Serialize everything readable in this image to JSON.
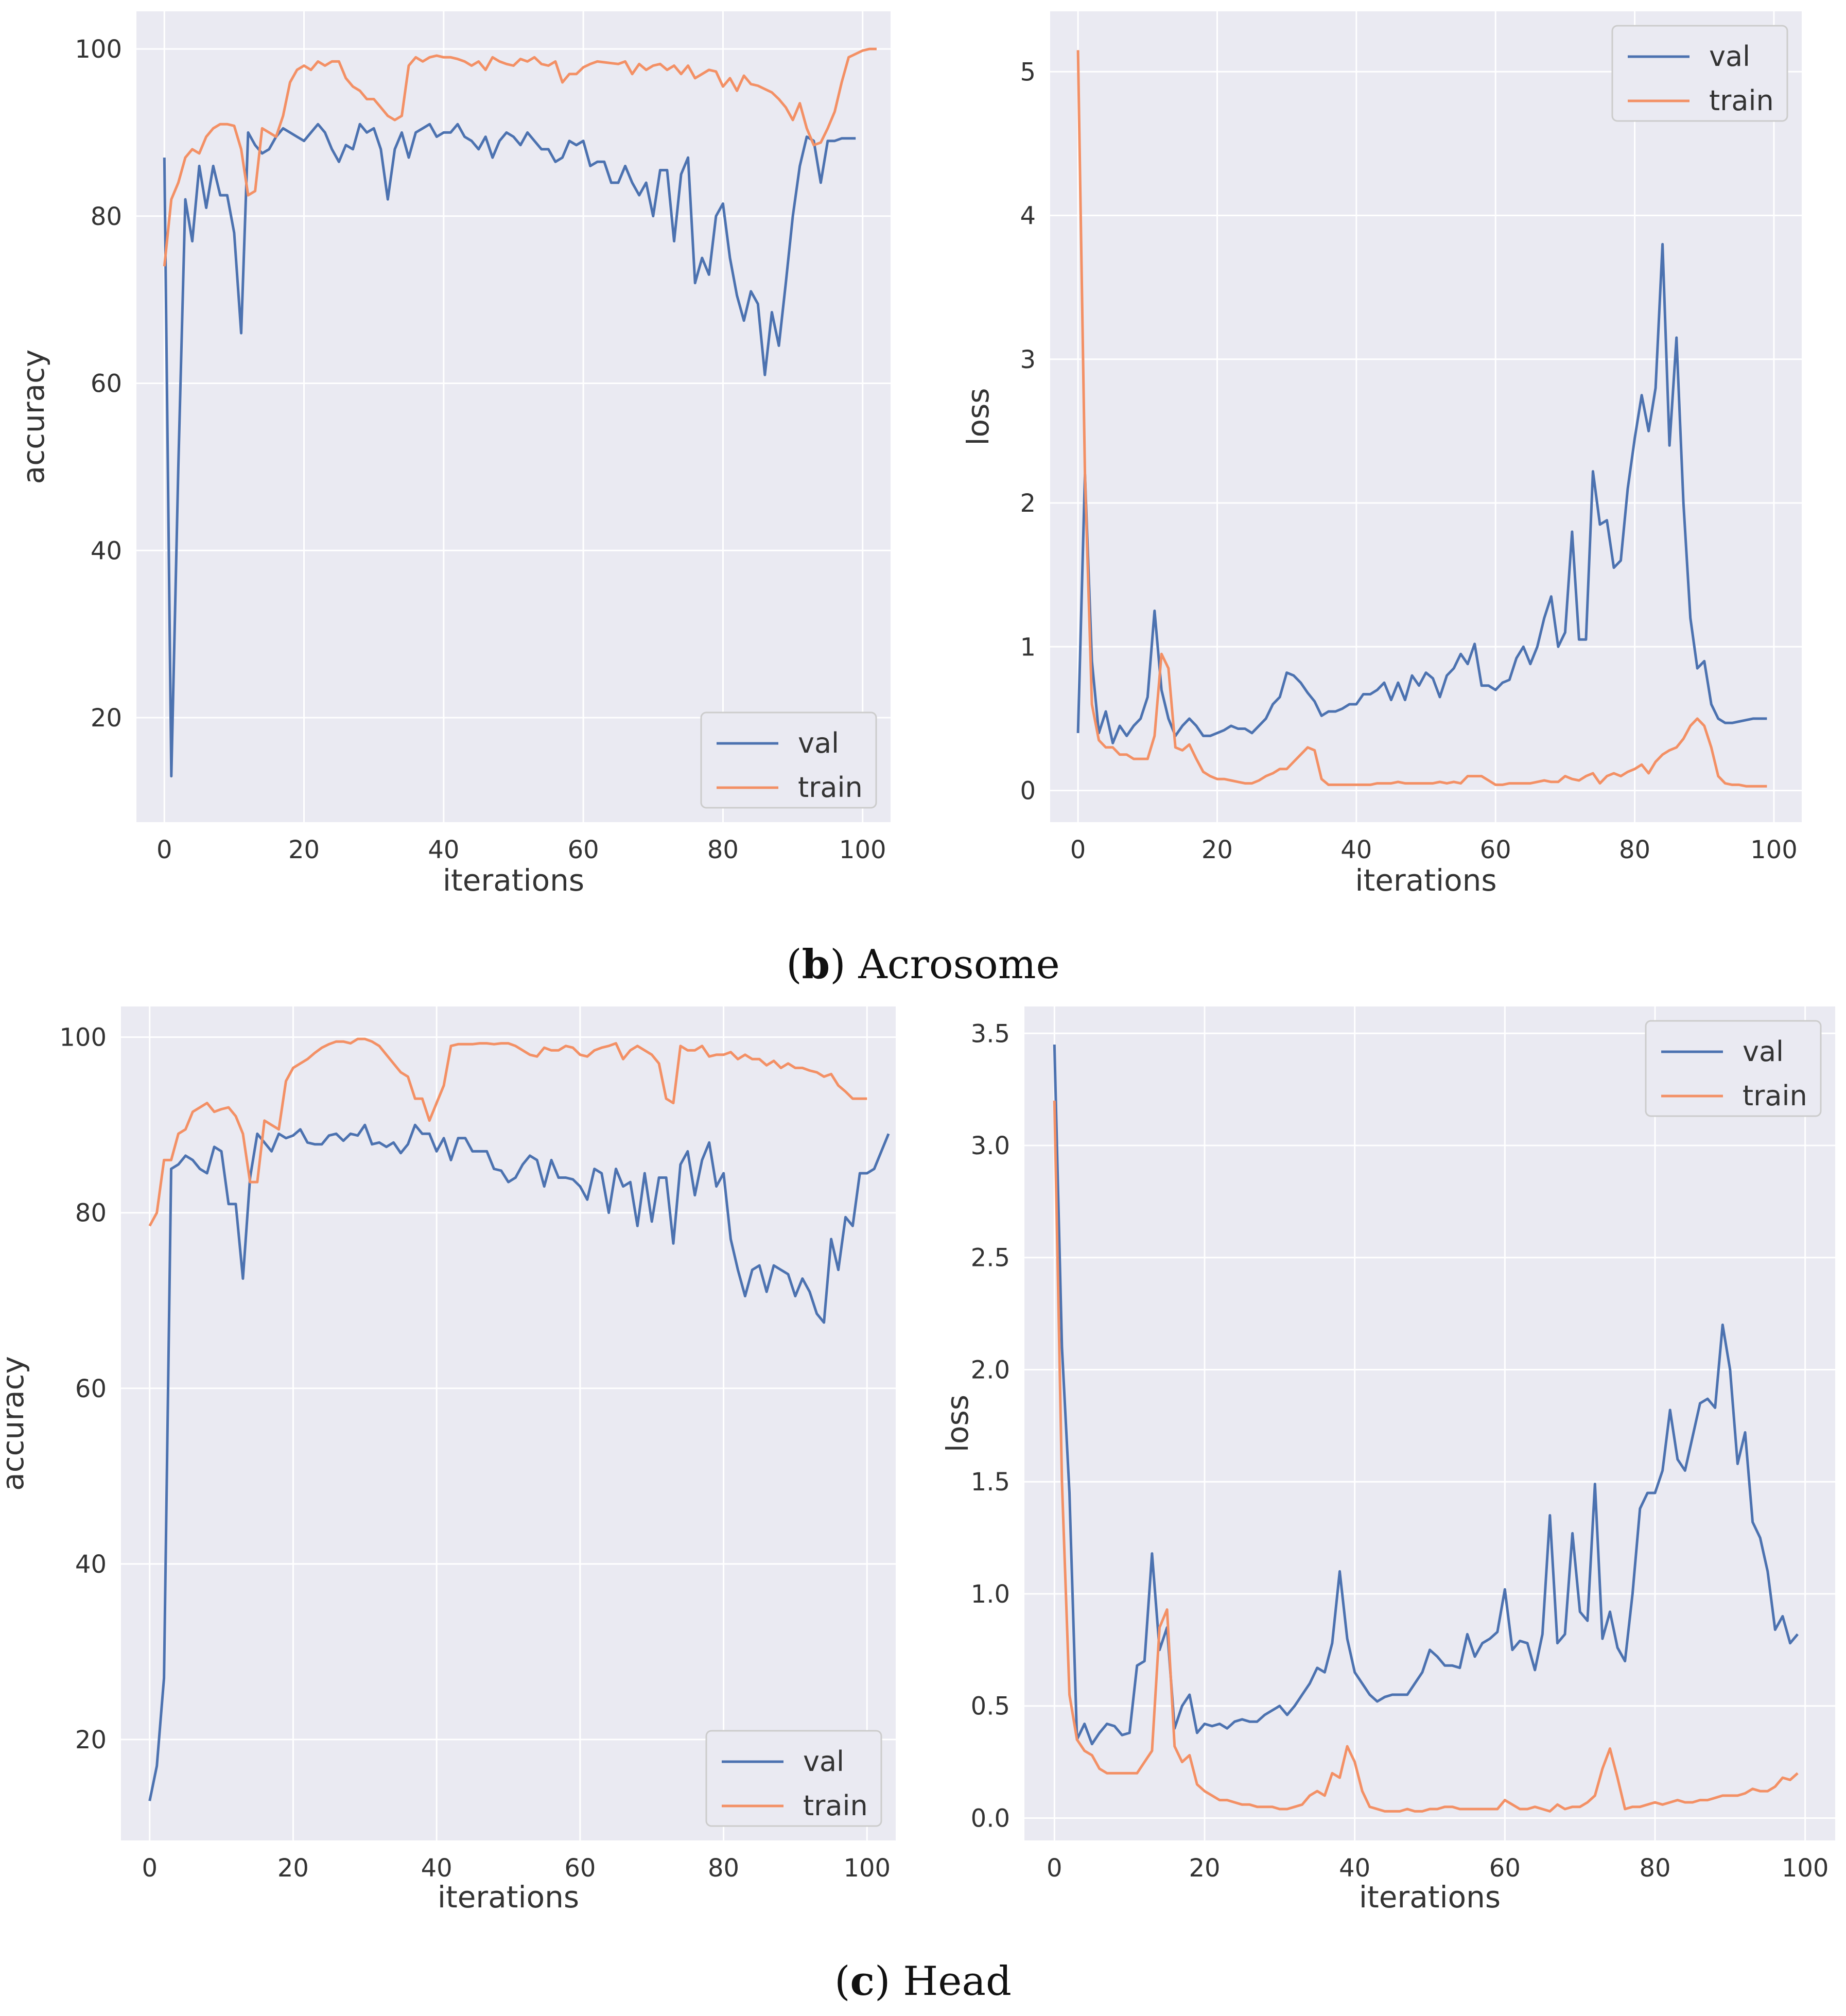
{
  "colors": {
    "val": "#4c72b0",
    "train": "#f39065",
    "background": "#eaeaf2",
    "grid": "#ffffff"
  },
  "captions": [
    {
      "letter": "b",
      "text": "Acrosome"
    },
    {
      "letter": "c",
      "text": "Head"
    }
  ],
  "chart_data": [
    {
      "id": "acrosome-accuracy",
      "type": "line",
      "xlabel": "iterations",
      "ylabel": "accuracy",
      "xlim": [
        -4,
        104
      ],
      "ylim": [
        7.5,
        104.5
      ],
      "xticks": [
        0,
        20,
        40,
        60,
        80,
        100
      ],
      "yticks": [
        20,
        40,
        60,
        80,
        100
      ],
      "legend": "bottom-right",
      "series": [
        {
          "name": "val",
          "values": [
            87,
            13,
            50,
            82,
            77,
            86,
            81,
            86,
            82.5,
            82.5,
            78,
            66,
            90,
            88.5,
            87.5,
            88,
            89.5,
            90.5,
            90,
            89.5,
            89,
            90,
            91,
            90,
            88,
            86.5,
            88.5,
            88,
            91,
            90,
            90.5,
            88,
            82,
            88,
            90,
            87,
            90,
            90.5,
            91,
            89.5,
            90,
            90,
            91,
            89.5,
            89,
            88,
            89.5,
            87,
            89,
            90,
            89.5,
            88.5,
            90,
            89,
            88,
            88,
            86.5,
            87,
            89,
            88.5,
            89,
            86,
            86.5,
            86.5,
            84,
            84,
            86,
            84,
            82.5,
            84,
            80,
            85.5,
            85.5,
            77,
            85,
            87,
            72,
            75,
            73,
            80,
            81.5,
            75,
            70.5,
            67.5,
            71,
            69.5,
            61,
            68.5,
            64.5,
            72,
            80,
            86,
            89.5,
            89,
            84,
            89,
            89,
            89.3,
            89.3,
            89.3
          ]
        },
        {
          "name": "train",
          "values": [
            74,
            82,
            84,
            87,
            88,
            87.5,
            89.5,
            90.5,
            91,
            91,
            90.8,
            88,
            82.5,
            83,
            90.5,
            90,
            89.5,
            92,
            96,
            97.5,
            98,
            97.5,
            98.5,
            98,
            98.5,
            98.5,
            96.5,
            95.5,
            95,
            94,
            94,
            93,
            92,
            91.5,
            92,
            98,
            99,
            98.5,
            99,
            99.2,
            99,
            99,
            98.8,
            98.5,
            98,
            98.5,
            97.5,
            99,
            98.5,
            98.2,
            98,
            98.8,
            98.5,
            99,
            98.2,
            98,
            98.5,
            96,
            97,
            97,
            97.8,
            98.2,
            98.5,
            98.4,
            98.3,
            98.2,
            98.5,
            97,
            98.2,
            97.5,
            98,
            98.2,
            97.5,
            98,
            97,
            98,
            96.5,
            97,
            97.5,
            97.3,
            95.5,
            96.5,
            95,
            96.8,
            95.8,
            95.6,
            95.2,
            94.8,
            94,
            93,
            91.5,
            93.5,
            90.5,
            88.5,
            88.8,
            90.5,
            92.5,
            96,
            99,
            99.4,
            99.8,
            100,
            100
          ]
        }
      ]
    },
    {
      "id": "acrosome-loss",
      "type": "line",
      "xlabel": "iterations",
      "ylabel": "loss",
      "xlim": [
        -4,
        104
      ],
      "ylim": [
        -0.22,
        5.42
      ],
      "xticks": [
        0,
        20,
        40,
        60,
        80,
        100
      ],
      "yticks": [
        0,
        1,
        2,
        3,
        4,
        5
      ],
      "legend": "top-right",
      "series": [
        {
          "name": "val",
          "values": [
            0.4,
            2.2,
            0.9,
            0.4,
            0.55,
            0.33,
            0.45,
            0.38,
            0.45,
            0.5,
            0.65,
            1.25,
            0.7,
            0.5,
            0.38,
            0.45,
            0.5,
            0.45,
            0.38,
            0.38,
            0.4,
            0.42,
            0.45,
            0.43,
            0.43,
            0.4,
            0.45,
            0.5,
            0.6,
            0.65,
            0.82,
            0.8,
            0.75,
            0.68,
            0.62,
            0.52,
            0.55,
            0.55,
            0.57,
            0.6,
            0.6,
            0.67,
            0.67,
            0.7,
            0.75,
            0.63,
            0.75,
            0.63,
            0.8,
            0.73,
            0.82,
            0.78,
            0.65,
            0.8,
            0.85,
            0.95,
            0.88,
            1.02,
            0.73,
            0.73,
            0.7,
            0.75,
            0.77,
            0.92,
            1.0,
            0.88,
            1.0,
            1.2,
            1.35,
            1.0,
            1.1,
            1.8,
            1.05,
            1.05,
            2.22,
            1.85,
            1.88,
            1.55,
            1.6,
            2.1,
            2.45,
            2.75,
            2.5,
            2.8,
            3.8,
            2.4,
            3.15,
            2.0,
            1.2,
            0.85,
            0.9,
            0.6,
            0.5,
            0.47,
            0.47,
            0.48,
            0.49,
            0.5,
            0.5,
            0.5
          ]
        },
        {
          "name": "train",
          "values": [
            5.15,
            2.2,
            0.6,
            0.35,
            0.3,
            0.3,
            0.25,
            0.25,
            0.22,
            0.22,
            0.22,
            0.38,
            0.95,
            0.85,
            0.3,
            0.28,
            0.32,
            0.22,
            0.13,
            0.1,
            0.08,
            0.08,
            0.07,
            0.06,
            0.05,
            0.05,
            0.07,
            0.1,
            0.12,
            0.15,
            0.15,
            0.2,
            0.25,
            0.3,
            0.28,
            0.08,
            0.04,
            0.04,
            0.04,
            0.04,
            0.04,
            0.04,
            0.04,
            0.05,
            0.05,
            0.05,
            0.06,
            0.05,
            0.05,
            0.05,
            0.05,
            0.05,
            0.06,
            0.05,
            0.06,
            0.05,
            0.1,
            0.1,
            0.1,
            0.07,
            0.04,
            0.04,
            0.05,
            0.05,
            0.05,
            0.05,
            0.06,
            0.07,
            0.06,
            0.06,
            0.1,
            0.08,
            0.07,
            0.1,
            0.12,
            0.05,
            0.1,
            0.12,
            0.1,
            0.13,
            0.15,
            0.18,
            0.12,
            0.2,
            0.25,
            0.28,
            0.3,
            0.36,
            0.45,
            0.5,
            0.45,
            0.3,
            0.1,
            0.05,
            0.04,
            0.04,
            0.03,
            0.03,
            0.03,
            0.03
          ]
        }
      ]
    },
    {
      "id": "head-accuracy",
      "type": "line",
      "xlabel": "iterations",
      "ylabel": "accuracy",
      "xlim": [
        -4,
        104
      ],
      "ylim": [
        8.5,
        103.5
      ],
      "xticks": [
        0,
        20,
        40,
        60,
        80,
        100
      ],
      "yticks": [
        20,
        40,
        60,
        80,
        100
      ],
      "legend": "bottom-right",
      "series": [
        {
          "name": "val",
          "values": [
            13,
            17,
            27,
            85,
            85.5,
            86.5,
            86,
            85,
            84.5,
            87.5,
            87,
            81,
            81,
            72.5,
            84,
            89,
            88,
            87,
            89,
            88.5,
            88.8,
            89.5,
            88,
            87.8,
            87.8,
            88.8,
            89,
            88.2,
            89,
            88.8,
            90,
            87.8,
            88,
            87.5,
            88,
            86.8,
            87.8,
            90,
            89,
            89,
            87,
            88.5,
            86,
            88.5,
            88.5,
            87,
            87,
            87,
            85,
            84.8,
            83.5,
            84,
            85.5,
            86.5,
            86,
            83,
            86,
            84,
            84,
            83.8,
            83,
            81.5,
            85,
            84.5,
            80,
            85,
            83,
            83.5,
            78.5,
            84.5,
            79,
            84,
            84,
            76.5,
            85.5,
            87,
            82,
            86,
            88,
            83,
            84.5,
            77,
            73.5,
            70.5,
            73.5,
            74,
            71,
            74,
            73.5,
            73,
            70.5,
            72.5,
            71,
            68.5,
            67.5,
            77,
            73.5,
            79.5,
            78.5,
            84.5,
            84.5,
            85,
            87,
            89
          ]
        },
        {
          "name": "train",
          "values": [
            78.5,
            80,
            86,
            86,
            89,
            89.5,
            91.5,
            92,
            92.5,
            91.5,
            91.8,
            92,
            91,
            89,
            83.5,
            83.5,
            90.5,
            90,
            89.5,
            95,
            96.5,
            97,
            97.5,
            98.2,
            98.8,
            99.2,
            99.5,
            99.5,
            99.3,
            99.8,
            99.8,
            99.5,
            99,
            98,
            97,
            96,
            95.5,
            93,
            93,
            90.5,
            92.5,
            94.5,
            99,
            99.2,
            99.2,
            99.2,
            99.3,
            99.3,
            99.2,
            99.3,
            99.3,
            99,
            98.5,
            98,
            97.8,
            98.8,
            98.5,
            98.5,
            99,
            98.8,
            98,
            97.8,
            98.5,
            98.8,
            99,
            99.3,
            97.5,
            98.5,
            99,
            98.5,
            98,
            97,
            93,
            92.5,
            99,
            98.5,
            98.5,
            99,
            97.8,
            98,
            98,
            98.3,
            97.5,
            98,
            97.5,
            97.5,
            96.8,
            97.3,
            96.5,
            97,
            96.5,
            96.5,
            96.2,
            96,
            95.5,
            95.8,
            94.5,
            93.8,
            93,
            93,
            93
          ]
        }
      ]
    },
    {
      "id": "head-loss",
      "type": "line",
      "xlabel": "iterations",
      "ylabel": "loss",
      "xlim": [
        -4,
        104
      ],
      "ylim": [
        -0.1,
        3.62
      ],
      "xticks": [
        0,
        20,
        40,
        60,
        80,
        100
      ],
      "yticks": [
        "0.0",
        "0.5",
        "1.0",
        "1.5",
        "2.0",
        "2.5",
        "3.0",
        "3.5"
      ],
      "legend": "top-right",
      "series": [
        {
          "name": "val",
          "values": [
            3.45,
            2.1,
            1.45,
            0.35,
            0.42,
            0.33,
            0.38,
            0.42,
            0.41,
            0.37,
            0.38,
            0.68,
            0.7,
            1.18,
            0.75,
            0.85,
            0.4,
            0.5,
            0.55,
            0.38,
            0.42,
            0.41,
            0.42,
            0.4,
            0.43,
            0.44,
            0.43,
            0.43,
            0.46,
            0.48,
            0.5,
            0.46,
            0.5,
            0.55,
            0.6,
            0.67,
            0.65,
            0.78,
            1.1,
            0.8,
            0.65,
            0.6,
            0.55,
            0.52,
            0.54,
            0.55,
            0.55,
            0.55,
            0.6,
            0.65,
            0.75,
            0.72,
            0.68,
            0.68,
            0.67,
            0.82,
            0.72,
            0.78,
            0.8,
            0.83,
            1.02,
            0.75,
            0.79,
            0.78,
            0.66,
            0.82,
            1.35,
            0.78,
            0.82,
            1.27,
            0.92,
            0.88,
            1.49,
            0.8,
            0.92,
            0.76,
            0.7,
            1.0,
            1.38,
            1.45,
            1.45,
            1.55,
            1.82,
            1.6,
            1.55,
            1.7,
            1.85,
            1.87,
            1.83,
            2.2,
            2.0,
            1.58,
            1.72,
            1.32,
            1.25,
            1.1,
            0.84,
            0.9,
            0.78,
            0.82
          ]
        },
        {
          "name": "train",
          "values": [
            3.2,
            1.5,
            0.55,
            0.35,
            0.3,
            0.28,
            0.22,
            0.2,
            0.2,
            0.2,
            0.2,
            0.2,
            0.25,
            0.3,
            0.85,
            0.93,
            0.32,
            0.25,
            0.28,
            0.15,
            0.12,
            0.1,
            0.08,
            0.08,
            0.07,
            0.06,
            0.06,
            0.05,
            0.05,
            0.05,
            0.04,
            0.04,
            0.05,
            0.06,
            0.1,
            0.12,
            0.1,
            0.2,
            0.18,
            0.32,
            0.25,
            0.12,
            0.05,
            0.04,
            0.03,
            0.03,
            0.03,
            0.04,
            0.03,
            0.03,
            0.04,
            0.04,
            0.05,
            0.05,
            0.04,
            0.04,
            0.04,
            0.04,
            0.04,
            0.04,
            0.08,
            0.06,
            0.04,
            0.04,
            0.05,
            0.04,
            0.03,
            0.06,
            0.04,
            0.05,
            0.05,
            0.07,
            0.1,
            0.22,
            0.31,
            0.18,
            0.04,
            0.05,
            0.05,
            0.06,
            0.07,
            0.06,
            0.07,
            0.08,
            0.07,
            0.07,
            0.08,
            0.08,
            0.09,
            0.1,
            0.1,
            0.1,
            0.11,
            0.13,
            0.12,
            0.12,
            0.14,
            0.18,
            0.17,
            0.2
          ]
        }
      ]
    }
  ]
}
